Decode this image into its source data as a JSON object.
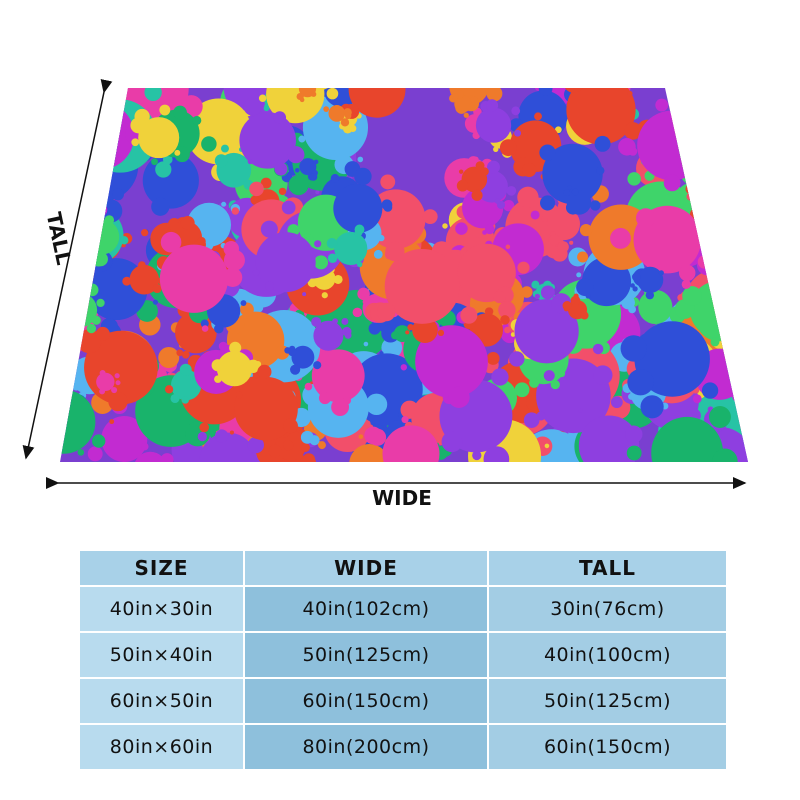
{
  "diagram": {
    "tall_label": "TALL",
    "wide_label": "WIDE"
  },
  "table": {
    "header": [
      "SIZE",
      "WIDE",
      "TALL"
    ],
    "rows": [
      [
        "40in×30in",
        "40in(102cm)",
        "30in(76cm)"
      ],
      [
        "50in×40in",
        "50in(125cm)",
        "40in(100cm)"
      ],
      [
        "60in×50in",
        "60in(150cm)",
        "50in(125cm)"
      ],
      [
        "80in×60in",
        "80in(200cm)",
        "60in(150cm)"
      ]
    ]
  }
}
